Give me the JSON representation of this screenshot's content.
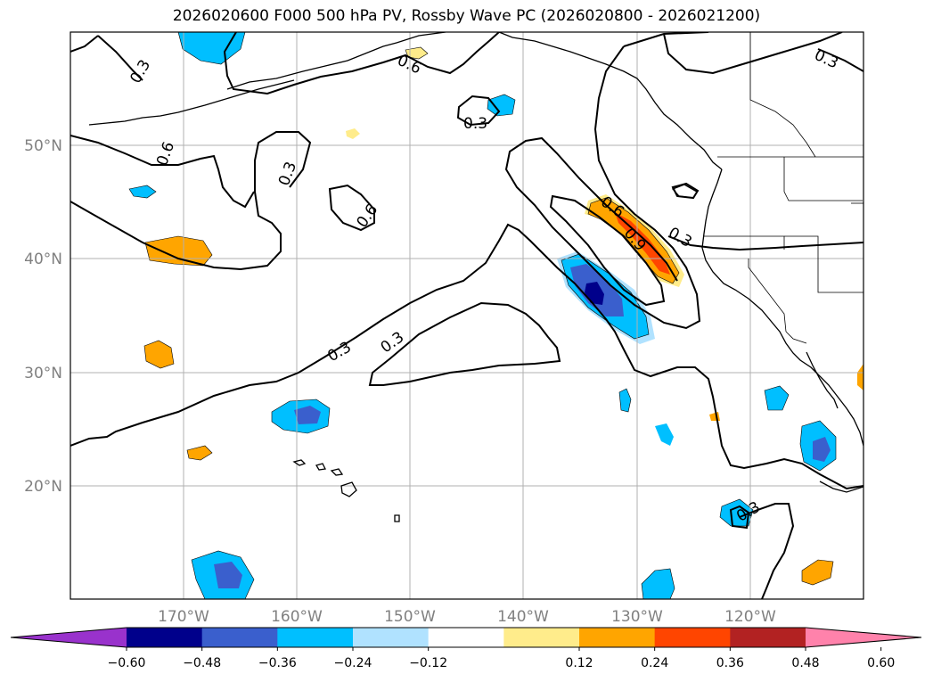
{
  "title": "2026020600 F000 500 hPa PV, Rossby Wave PC (2026020800 - 2026021200)",
  "map": {
    "lon_range": [
      -180,
      -110
    ],
    "lat_range": [
      10,
      60
    ],
    "lat_labels": [
      "50°N",
      "40°N",
      "30°N",
      "20°N"
    ],
    "lon_labels": [
      "170°W",
      "160°W",
      "150°W",
      "140°W",
      "130°W",
      "120°W"
    ],
    "contour_labels": [
      {
        "text": "0.3"
      },
      {
        "text": "0.6"
      },
      {
        "text": "0.6"
      },
      {
        "text": "0.3"
      },
      {
        "text": "0.3"
      },
      {
        "text": "0.6"
      },
      {
        "text": "0.3"
      },
      {
        "text": "0.3"
      },
      {
        "text": "0.3"
      },
      {
        "text": "0.6"
      },
      {
        "text": "0.9"
      },
      {
        "text": "0.3"
      },
      {
        "text": "0.3"
      }
    ]
  },
  "colorbar": {
    "ticks": [
      "−0.60",
      "−0.48",
      "−0.36",
      "−0.24",
      "−0.12",
      "0.12",
      "0.24",
      "0.36",
      "0.48",
      "0.60"
    ],
    "colors": [
      "#9932cc",
      "#00008b",
      "#3a5fcd",
      "#00bfff",
      "#b0e2ff",
      "#ffffff",
      "#ffec8b",
      "#ffa500",
      "#ff4500",
      "#b22222",
      "#ff82ab"
    ]
  }
}
